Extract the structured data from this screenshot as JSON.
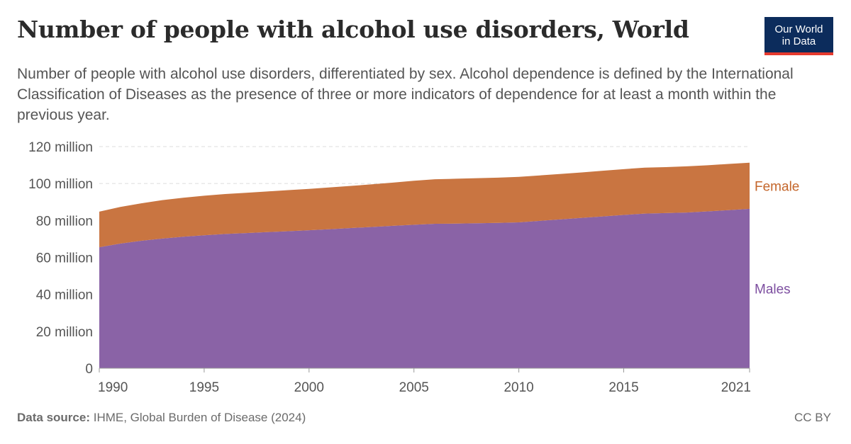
{
  "header": {
    "title": "Number of people with alcohol use disorders, World",
    "subtitle": "Number of people with alcohol use disorders, differentiated by sex. Alcohol dependence is defined by the International Classification of Diseases as the presence of three or more indicators of dependence for at least a month within the previous year.",
    "logo_line1": "Our World",
    "logo_line2": "in Data"
  },
  "footer": {
    "source_label": "Data source:",
    "source_text": "IHME, Global Burden of Disease (2024)",
    "license": "CC BY"
  },
  "colors": {
    "female": "#c97541",
    "males": "#8a63a6",
    "female_label": "#c4662b",
    "males_label": "#7d4fa0",
    "grid": "#dddddd",
    "axis_text": "#555555"
  },
  "chart_data": {
    "type": "area",
    "stacked": true,
    "x": [
      1990,
      1991,
      1992,
      1993,
      1994,
      1995,
      1996,
      1997,
      1998,
      1999,
      2000,
      2001,
      2002,
      2003,
      2004,
      2005,
      2006,
      2007,
      2008,
      2009,
      2010,
      2011,
      2012,
      2013,
      2014,
      2015,
      2016,
      2017,
      2018,
      2019,
      2020,
      2021
    ],
    "series": [
      {
        "name": "Males",
        "values": [
          65.5,
          67.5,
          69.0,
          70.2,
          71.2,
          72.0,
          72.7,
          73.2,
          73.7,
          74.2,
          74.7,
          75.3,
          75.9,
          76.5,
          77.1,
          77.7,
          78.2,
          78.3,
          78.5,
          78.7,
          79.0,
          79.8,
          80.6,
          81.4,
          82.2,
          83.0,
          83.7,
          84.0,
          84.3,
          84.9,
          85.6,
          86.3
        ]
      },
      {
        "name": "Female",
        "values": [
          19.3,
          19.8,
          20.3,
          20.8,
          21.1,
          21.4,
          21.6,
          21.8,
          22.0,
          22.2,
          22.4,
          22.6,
          22.8,
          23.1,
          23.4,
          23.8,
          24.1,
          24.3,
          24.4,
          24.5,
          24.6,
          24.6,
          24.6,
          24.6,
          24.7,
          24.8,
          24.9,
          24.9,
          25.0,
          25.0,
          25.0,
          25.0
        ]
      }
    ],
    "yticks": [
      "0",
      "20 million",
      "40 million",
      "60 million",
      "80 million",
      "100 million",
      "120 million"
    ],
    "ytick_values": [
      0,
      20,
      40,
      60,
      80,
      100,
      120
    ],
    "xticks": [
      1990,
      1995,
      2000,
      2005,
      2010,
      2015,
      2021
    ],
    "ylim": [
      0,
      120
    ],
    "xlim": [
      1990,
      2021
    ],
    "grid": true,
    "legend_placement": "right, labels at line ends"
  }
}
